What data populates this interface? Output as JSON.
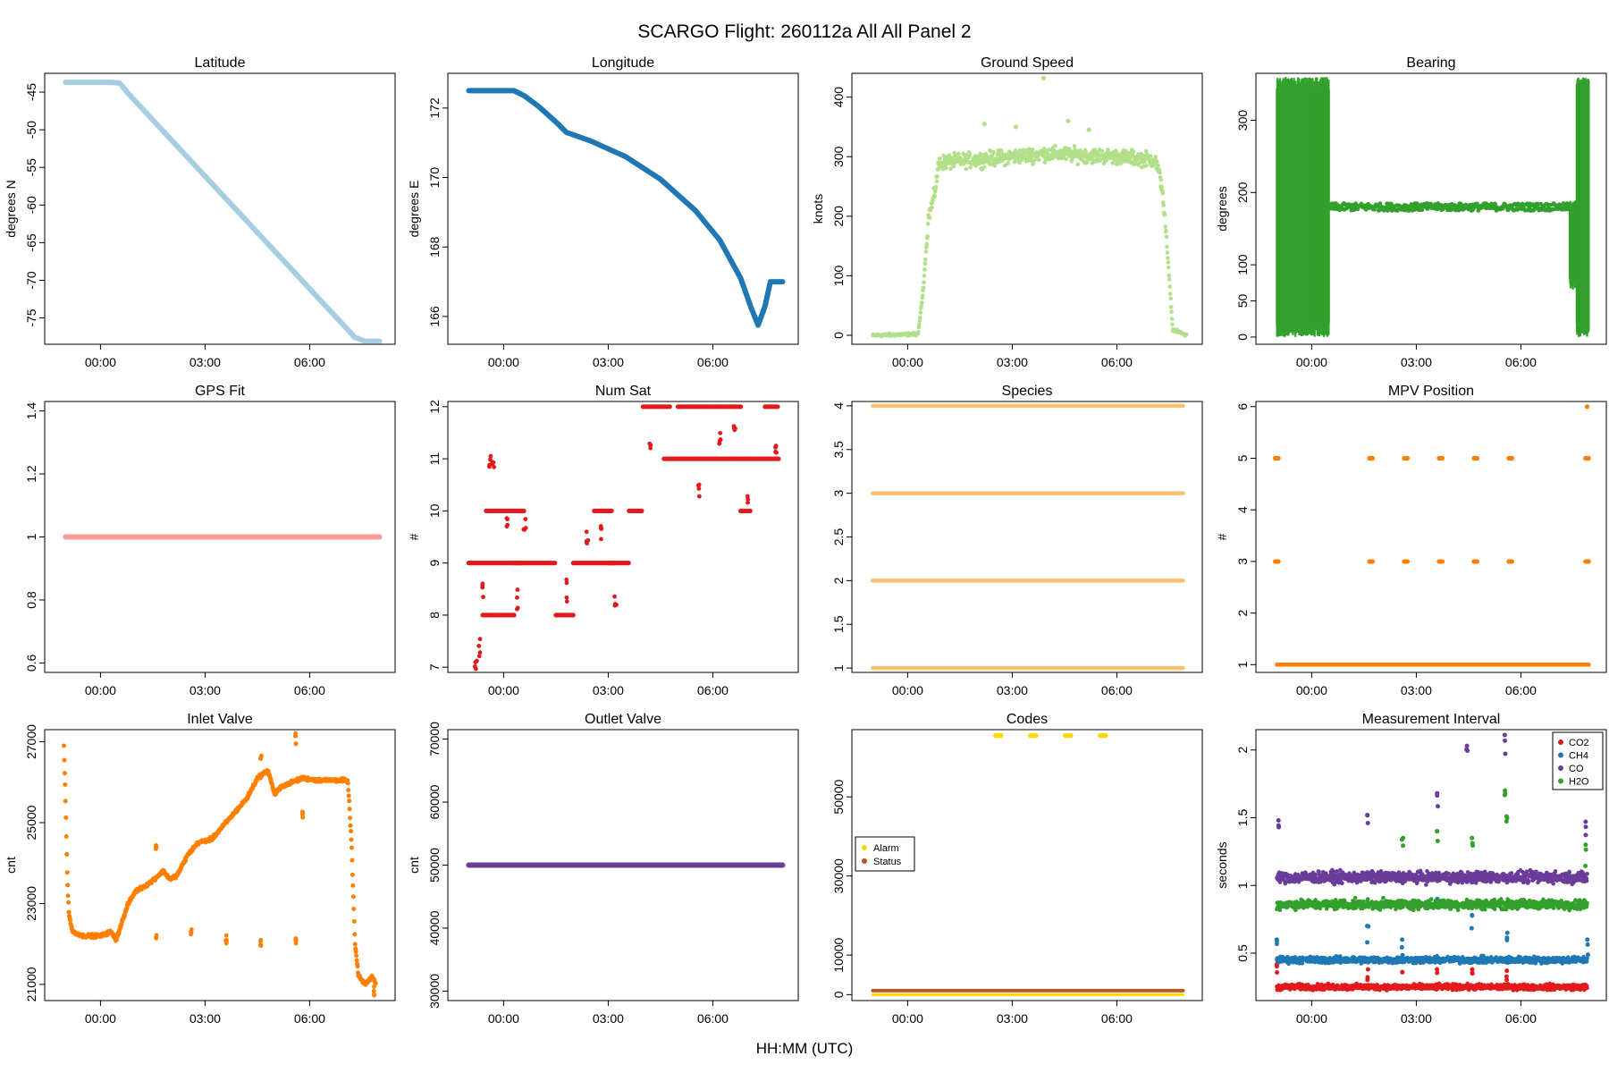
{
  "figure": {
    "title": "SCARGO Flight: 260112a  All All  Panel 2",
    "xlabel": "HH:MM (UTC)"
  },
  "chart_data": [
    {
      "id": "latitude",
      "type": "line",
      "title": "Latitude",
      "ylabel": "degrees N",
      "color": "#a6cee3",
      "ylim": [
        -78.5,
        -42.5
      ],
      "yticks": [
        -45,
        -50,
        -55,
        -60,
        -65,
        -70,
        -75
      ],
      "xticks": [
        "00:00",
        "03:00",
        "06:00"
      ],
      "points": [
        [
          -1.0,
          -43.7
        ],
        [
          0.3,
          -43.7
        ],
        [
          0.55,
          -43.8
        ],
        [
          0.8,
          -45.2
        ],
        [
          7.3,
          -77.6
        ],
        [
          7.6,
          -78.1
        ],
        [
          8.0,
          -78.1
        ]
      ]
    },
    {
      "id": "longitude",
      "type": "line",
      "title": "Longitude",
      "ylabel": "degrees E",
      "color": "#1f78b4",
      "ylim": [
        165.2,
        173.0
      ],
      "yticks": [
        166,
        168,
        170,
        172
      ],
      "xticks": [
        "00:00",
        "03:00",
        "06:00"
      ],
      "points": [
        [
          -1.0,
          172.5
        ],
        [
          0.3,
          172.5
        ],
        [
          0.6,
          172.35
        ],
        [
          1.0,
          172.05
        ],
        [
          1.5,
          171.6
        ],
        [
          1.8,
          171.3
        ],
        [
          2.5,
          171.05
        ],
        [
          3.5,
          170.6
        ],
        [
          4.5,
          169.95
        ],
        [
          5.5,
          169.05
        ],
        [
          6.2,
          168.2
        ],
        [
          6.8,
          167.1
        ],
        [
          7.1,
          166.25
        ],
        [
          7.3,
          165.75
        ],
        [
          7.5,
          166.3
        ],
        [
          7.65,
          167.0
        ],
        [
          8.0,
          167.0
        ]
      ]
    },
    {
      "id": "ground_speed",
      "type": "scatter",
      "title": "Ground Speed",
      "ylabel": "knots",
      "color": "#b2df8a",
      "ylim": [
        -15,
        440
      ],
      "yticks": [
        0,
        100,
        200,
        300,
        400
      ],
      "xticks": [
        "00:00",
        "03:00",
        "06:00"
      ],
      "profile": [
        [
          -1.0,
          0
        ],
        [
          0.3,
          2
        ],
        [
          0.45,
          80
        ],
        [
          0.6,
          200
        ],
        [
          0.75,
          230
        ],
        [
          0.9,
          290
        ],
        [
          2.0,
          295
        ],
        [
          4.0,
          305
        ],
        [
          6.0,
          300
        ],
        [
          7.1,
          295
        ],
        [
          7.3,
          250
        ],
        [
          7.5,
          100
        ],
        [
          7.6,
          10
        ],
        [
          8.0,
          0
        ]
      ],
      "noise": 18,
      "outliers": [
        [
          3.9,
          432
        ],
        [
          2.2,
          355
        ],
        [
          4.6,
          360
        ],
        [
          5.2,
          345
        ],
        [
          3.1,
          350
        ]
      ]
    },
    {
      "id": "bearing",
      "type": "scatter",
      "title": "Bearing",
      "ylabel": "degrees",
      "color": "#33a02c",
      "ylim": [
        -10,
        365
      ],
      "yticks": [
        0,
        50,
        100,
        200,
        300
      ],
      "xticks": [
        "00:00",
        "03:00",
        "06:00"
      ],
      "bands": [
        {
          "x0": -1.0,
          "x1": 0.5,
          "y0": 0,
          "y1": 360
        },
        {
          "x0": 0.5,
          "x1": 7.4,
          "y0": 175,
          "y1": 185
        },
        {
          "x0": 7.4,
          "x1": 7.6,
          "y0": 65,
          "y1": 190
        },
        {
          "x0": 7.6,
          "x1": 7.95,
          "y0": 0,
          "y1": 360
        }
      ]
    },
    {
      "id": "gps_fit",
      "type": "line",
      "title": "GPS Fit",
      "ylabel": "",
      "color": "#fb9a99",
      "ylim": [
        0.57,
        1.43
      ],
      "yticks": [
        0.6,
        0.8,
        1.0,
        1.2,
        1.4
      ],
      "xticks": [
        "00:00",
        "03:00",
        "06:00"
      ],
      "points": [
        [
          -1.0,
          1.0
        ],
        [
          8.0,
          1.0
        ]
      ]
    },
    {
      "id": "num_sat",
      "type": "scatter",
      "title": "Num Sat",
      "ylabel": "#",
      "color": "#e31a1c",
      "ylim": [
        6.9,
        12.1
      ],
      "yticks": [
        7,
        8,
        9,
        10,
        11,
        12
      ],
      "xticks": [
        "00:00",
        "03:00",
        "06:00"
      ],
      "levels": [
        [
          -1.0,
          0.5,
          9
        ],
        [
          -0.6,
          0.3,
          8
        ],
        [
          -0.5,
          0.6,
          10
        ],
        [
          0.3,
          1.5,
          9
        ],
        [
          1.5,
          2.0,
          8
        ],
        [
          2.0,
          3.2,
          9
        ],
        [
          2.6,
          3.1,
          10
        ],
        [
          3.0,
          3.6,
          9
        ],
        [
          3.6,
          4.0,
          10
        ],
        [
          4.0,
          4.8,
          12
        ],
        [
          4.6,
          7.9,
          11
        ],
        [
          5.0,
          6.8,
          12
        ],
        [
          6.8,
          7.1,
          10
        ],
        [
          7.5,
          7.9,
          12
        ]
      ],
      "scatter": [
        [
          -0.8,
          7.0
        ],
        [
          -0.7,
          7.4
        ],
        [
          -0.6,
          8.6
        ],
        [
          -0.4,
          11.0
        ],
        [
          -0.3,
          10.8
        ],
        [
          0.1,
          9.7
        ],
        [
          0.4,
          8.3
        ],
        [
          0.6,
          9.7
        ],
        [
          1.8,
          8.5
        ],
        [
          2.4,
          9.4
        ],
        [
          2.8,
          9.6
        ],
        [
          3.2,
          8.2
        ],
        [
          4.2,
          11.3
        ],
        [
          5.6,
          10.4
        ],
        [
          6.2,
          11.4
        ],
        [
          6.6,
          11.6
        ],
        [
          7.0,
          10.2
        ],
        [
          7.8,
          11.3
        ]
      ]
    },
    {
      "id": "species",
      "type": "line",
      "title": "Species",
      "ylabel": "",
      "color": "#fdbf6f",
      "ylim": [
        0.95,
        4.05
      ],
      "yticks": [
        1.0,
        1.5,
        2.0,
        2.5,
        3.0,
        3.5,
        4.0
      ],
      "xticks": [
        "00:00",
        "03:00",
        "06:00"
      ],
      "hlines": [
        1,
        2,
        3,
        4
      ]
    },
    {
      "id": "mpv_position",
      "type": "scatter",
      "title": "MPV Position",
      "ylabel": "#",
      "color": "#ff7f00",
      "ylim": [
        0.85,
        6.1
      ],
      "yticks": [
        1,
        2,
        3,
        4,
        5,
        6
      ],
      "xticks": [
        "00:00",
        "03:00",
        "06:00"
      ],
      "base": 1,
      "clusters": [
        -1.0,
        1.7,
        2.7,
        3.7,
        4.7,
        5.7,
        7.9
      ],
      "extra": [
        [
          7.9,
          6
        ]
      ]
    },
    {
      "id": "inlet_valve",
      "type": "scatter",
      "title": "Inlet Valve",
      "ylabel": "cnt",
      "color": "#ff7f00",
      "ylim": [
        20600,
        27300
      ],
      "yticks": [
        21000,
        23000,
        25000,
        27000
      ],
      "xticks": [
        "00:00",
        "03:00",
        "06:00"
      ],
      "points": [
        [
          -1.05,
          26900
        ],
        [
          -1.0,
          25500
        ],
        [
          -0.95,
          23600
        ],
        [
          -0.9,
          22700
        ],
        [
          -0.8,
          22300
        ],
        [
          -0.5,
          22200
        ],
        [
          0.0,
          22200
        ],
        [
          0.3,
          22300
        ],
        [
          0.45,
          22100
        ],
        [
          0.6,
          22500
        ],
        [
          0.8,
          23000
        ],
        [
          1.0,
          23300
        ],
        [
          1.4,
          23500
        ],
        [
          1.8,
          23800
        ],
        [
          2.0,
          23600
        ],
        [
          2.2,
          23700
        ],
        [
          2.5,
          24200
        ],
        [
          2.8,
          24500
        ],
        [
          3.2,
          24600
        ],
        [
          3.6,
          25000
        ],
        [
          4.0,
          25400
        ],
        [
          4.2,
          25600
        ],
        [
          4.5,
          26100
        ],
        [
          4.8,
          26300
        ],
        [
          5.0,
          25700
        ],
        [
          5.2,
          25900
        ],
        [
          5.5,
          26000
        ],
        [
          5.8,
          26100
        ],
        [
          6.2,
          26050
        ],
        [
          7.0,
          26050
        ],
        [
          7.1,
          26000
        ],
        [
          7.2,
          24500
        ],
        [
          7.3,
          22000
        ],
        [
          7.4,
          21200
        ],
        [
          7.6,
          21000
        ],
        [
          7.8,
          21200
        ],
        [
          7.9,
          21000
        ]
      ],
      "outliers": [
        [
          5.6,
          27100
        ],
        [
          1.6,
          24400
        ],
        [
          4.6,
          26600
        ],
        [
          5.8,
          25200
        ],
        [
          1.6,
          22200
        ],
        [
          2.6,
          22300
        ],
        [
          3.6,
          22100
        ],
        [
          4.6,
          22000
        ],
        [
          5.6,
          22100
        ],
        [
          7.85,
          20800
        ]
      ]
    },
    {
      "id": "outlet_valve",
      "type": "line",
      "title": "Outlet Valve",
      "ylabel": "cnt",
      "color": "#6a3d9a",
      "ylim": [
        28500,
        71500
      ],
      "yticks": [
        30000,
        40000,
        50000,
        60000,
        70000
      ],
      "xticks": [
        "00:00",
        "03:00",
        "06:00"
      ],
      "points": [
        [
          -1.0,
          50000
        ],
        [
          8.0,
          50000
        ]
      ]
    },
    {
      "id": "codes",
      "type": "scatter",
      "title": "Codes",
      "ylabel": "",
      "ylim": [
        -1500,
        67000
      ],
      "yticks": [
        0,
        10000,
        30000,
        50000
      ],
      "xticks": [
        "00:00",
        "03:00",
        "06:00"
      ],
      "series": [
        {
          "name": "Alarm",
          "color": "#ffd700",
          "base": 0,
          "spikes": [
            2.6,
            3.6,
            4.6,
            5.6
          ],
          "spike_value": 65500
        },
        {
          "name": "Status",
          "color": "#b15928",
          "base": 1000
        }
      ],
      "legend": "left"
    },
    {
      "id": "measurement_interval",
      "type": "scatter",
      "title": "Measurement Interval",
      "ylabel": "seconds",
      "ylim": [
        0.15,
        2.15
      ],
      "yticks": [
        0.5,
        1.0,
        1.5,
        2.0
      ],
      "xticks": [
        "00:00",
        "03:00",
        "06:00"
      ],
      "series": [
        {
          "name": "CO2",
          "color": "#e31a1c",
          "level": 0.25,
          "spread": 0.03,
          "spikes": [
            [
              -1.0,
              0.42
            ],
            [
              1.6,
              0.38
            ],
            [
              2.6,
              0.36
            ],
            [
              3.6,
              0.38
            ],
            [
              4.6,
              0.38
            ],
            [
              5.6,
              0.37
            ]
          ]
        },
        {
          "name": "CH4",
          "color": "#1f78b4",
          "level": 0.45,
          "spread": 0.035,
          "spikes": [
            [
              -1.0,
              0.6
            ],
            [
              1.6,
              0.7
            ],
            [
              2.6,
              0.6
            ],
            [
              3.6,
              0.9
            ],
            [
              4.6,
              0.78
            ],
            [
              5.6,
              0.65
            ],
            [
              7.9,
              0.6
            ]
          ]
        },
        {
          "name": "CO",
          "color": "#6a3d9a",
          "level": 1.06,
          "spread": 0.06,
          "spikes": [
            [
              -0.95,
              1.48
            ],
            [
              1.6,
              1.52
            ],
            [
              3.6,
              1.68
            ],
            [
              4.45,
              2.03
            ],
            [
              5.55,
              2.11
            ],
            [
              7.85,
              1.47
            ]
          ]
        },
        {
          "name": "H2O",
          "color": "#33a02c",
          "level": 0.86,
          "spread": 0.05,
          "spikes": [
            [
              2.6,
              1.35
            ],
            [
              3.6,
              1.4
            ],
            [
              4.6,
              1.35
            ],
            [
              5.55,
              1.7
            ],
            [
              5.6,
              1.51
            ],
            [
              7.85,
              1.3
            ]
          ]
        }
      ],
      "legend": "top-right"
    }
  ]
}
